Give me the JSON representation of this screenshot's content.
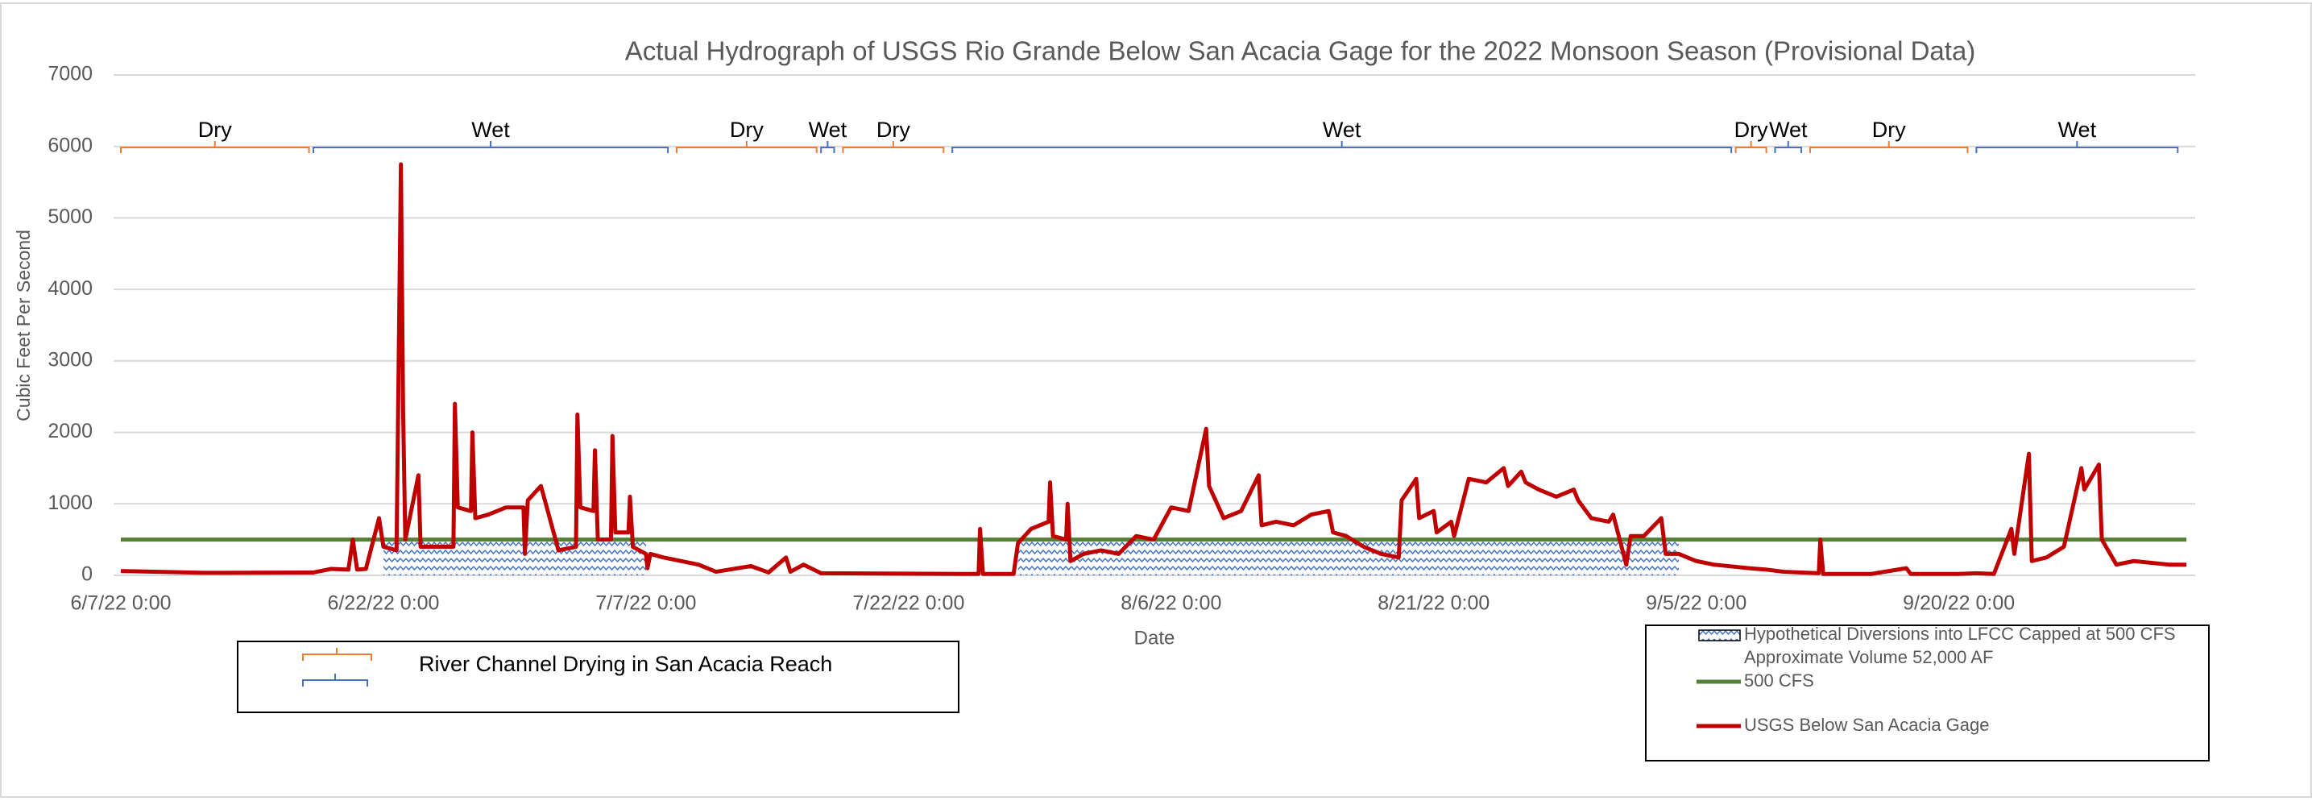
{
  "chart_data": {
    "type": "line",
    "title": "Actual Hydrograph of USGS Rio Grande Below San Acacia Gage for the 2022 Monsoon Season (Provisional Data)",
    "x_label": "Date",
    "y_label": "Cubic Feet Per Second",
    "xlim": [
      "2022-06-07T00:00",
      "2022-10-03T12:00"
    ],
    "xticks": [
      {
        "value": "2022-06-07T00:00",
        "label": "6/7/22 0:00"
      },
      {
        "value": "2022-06-22T00:00",
        "label": "6/22/22 0:00"
      },
      {
        "value": "2022-07-07T00:00",
        "label": "7/7/22 0:00"
      },
      {
        "value": "2022-07-22T00:00",
        "label": "7/22/22 0:00"
      },
      {
        "value": "2022-08-06T00:00",
        "label": "8/6/22 0:00"
      },
      {
        "value": "2022-08-21T00:00",
        "label": "8/21/22 0:00"
      },
      {
        "value": "2022-09-05T00:00",
        "label": "9/5/22 0:00"
      },
      {
        "value": "2022-09-20T00:00",
        "label": "9/20/22 0:00"
      }
    ],
    "ylim": [
      0,
      7000
    ],
    "yticks": [
      0,
      1000,
      2000,
      3000,
      4000,
      5000,
      6000,
      7000
    ],
    "grid": true,
    "series": [
      {
        "name": [
          "Hypothetical Diversions into LFCC Capped at 500 CFS",
          "Approximate Volume 52,000 AF"
        ],
        "type": "area",
        "color": "#4472c4",
        "x": [
          "2022-06-22T00:00",
          "2022-07-07T00:00",
          "2022-07-17T00:00",
          "2022-07-28T06:00",
          "2022-09-04T00:00"
        ],
        "values": [
          500,
          500,
          null,
          500,
          500
        ]
      },
      {
        "name": "500 CFS",
        "type": "line",
        "color": "#548235",
        "x": [
          "2022-06-07T00:00",
          "2022-10-03T00:00"
        ],
        "values": [
          500,
          500
        ]
      },
      {
        "name": "USGS Below San Acacia Gage",
        "type": "line",
        "color": "#c00000",
        "x": [
          "2022-06-07T00:00",
          "2022-06-12T00:00",
          "2022-06-18T00:00",
          "2022-06-19T00:00",
          "2022-06-20T00:00",
          "2022-06-20T06:00",
          "2022-06-20T12:00",
          "2022-06-21T00:00",
          "2022-06-21T18:00",
          "2022-06-22T00:00",
          "2022-06-22T18:00",
          "2022-06-23T00:00",
          "2022-06-23T03:00",
          "2022-06-23T06:00",
          "2022-06-24T00:00",
          "2022-06-24T03:00",
          "2022-06-26T00:00",
          "2022-06-26T02:00",
          "2022-06-26T06:00",
          "2022-06-27T00:00",
          "2022-06-27T02:00",
          "2022-06-27T06:00",
          "2022-06-28T00:00",
          "2022-06-29T00:00",
          "2022-06-30T00:00",
          "2022-06-30T02:00",
          "2022-06-30T06:00",
          "2022-07-01T00:00",
          "2022-07-02T00:00",
          "2022-07-03T00:00",
          "2022-07-03T02:00",
          "2022-07-03T06:00",
          "2022-07-04T00:00",
          "2022-07-04T02:00",
          "2022-07-04T06:00",
          "2022-07-05T00:00",
          "2022-07-05T02:00",
          "2022-07-05T06:00",
          "2022-07-06T00:00",
          "2022-07-06T02:00",
          "2022-07-06T06:00",
          "2022-07-07T00:00",
          "2022-07-07T02:00",
          "2022-07-07T06:00",
          "2022-07-08T00:00",
          "2022-07-10T00:00",
          "2022-07-11T00:00",
          "2022-07-13T00:00",
          "2022-07-14T00:00",
          "2022-07-15T00:00",
          "2022-07-15T06:00",
          "2022-07-16T00:00",
          "2022-07-17T00:00",
          "2022-07-25T00:00",
          "2022-07-26T00:00",
          "2022-07-26T02:00",
          "2022-07-26T06:00",
          "2022-07-28T00:00",
          "2022-07-28T06:00",
          "2022-07-29T00:00",
          "2022-07-30T00:00",
          "2022-07-30T02:00",
          "2022-07-30T06:00",
          "2022-07-31T00:00",
          "2022-07-31T02:00",
          "2022-07-31T06:00",
          "2022-08-01T00:00",
          "2022-08-02T00:00",
          "2022-08-03T00:00",
          "2022-08-04T00:00",
          "2022-08-05T00:00",
          "2022-08-06T00:00",
          "2022-08-07T00:00",
          "2022-08-08T00:00",
          "2022-08-08T04:00",
          "2022-08-09T00:00",
          "2022-08-10T00:00",
          "2022-08-11T00:00",
          "2022-08-11T04:00",
          "2022-08-12T00:00",
          "2022-08-13T00:00",
          "2022-08-14T00:00",
          "2022-08-15T00:00",
          "2022-08-15T06:00",
          "2022-08-16T00:00",
          "2022-08-17T00:00",
          "2022-08-18T00:00",
          "2022-08-19T00:00",
          "2022-08-19T04:00",
          "2022-08-20T00:00",
          "2022-08-20T04:00",
          "2022-08-21T00:00",
          "2022-08-21T04:00",
          "2022-08-22T00:00",
          "2022-08-22T04:00",
          "2022-08-23T00:00",
          "2022-08-24T00:00",
          "2022-08-25T00:00",
          "2022-08-25T06:00",
          "2022-08-26T00:00",
          "2022-08-26T06:00",
          "2022-08-27T00:00",
          "2022-08-28T00:00",
          "2022-08-29T00:00",
          "2022-08-29T06:00",
          "2022-08-30T00:00",
          "2022-08-31T00:00",
          "2022-08-31T06:00",
          "2022-09-01T00:00",
          "2022-09-01T06:00",
          "2022-09-02T00:00",
          "2022-09-03T00:00",
          "2022-09-03T06:00",
          "2022-09-04T00:00",
          "2022-09-05T00:00",
          "2022-09-06T00:00",
          "2022-09-08T00:00",
          "2022-09-09T00:00",
          "2022-09-10T00:00",
          "2022-09-12T00:00",
          "2022-09-12T02:00",
          "2022-09-12T06:00",
          "2022-09-15T00:00",
          "2022-09-17T00:00",
          "2022-09-17T06:00",
          "2022-09-20T00:00",
          "2022-09-21T00:00",
          "2022-09-22T00:00",
          "2022-09-23T00:00",
          "2022-09-23T04:00",
          "2022-09-24T00:00",
          "2022-09-24T04:00",
          "2022-09-25T00:00",
          "2022-09-26T00:00",
          "2022-09-27T00:00",
          "2022-09-27T04:00",
          "2022-09-28T00:00",
          "2022-09-28T04:00",
          "2022-09-29T00:00",
          "2022-09-30T00:00",
          "2022-10-02T00:00",
          "2022-10-03T00:00"
        ],
        "values": [
          60,
          35,
          40,
          90,
          80,
          500,
          80,
          90,
          800,
          400,
          350,
          5750,
          2300,
          500,
          1400,
          400,
          400,
          2400,
          950,
          900,
          2000,
          800,
          850,
          950,
          950,
          300,
          1050,
          1250,
          350,
          400,
          2250,
          950,
          900,
          1750,
          500,
          500,
          1950,
          600,
          600,
          1100,
          400,
          300,
          100,
          300,
          250,
          150,
          50,
          130,
          40,
          250,
          50,
          150,
          30,
          20,
          20,
          650,
          20,
          20,
          450,
          650,
          750,
          1300,
          550,
          500,
          1000,
          200,
          300,
          350,
          300,
          550,
          500,
          950,
          900,
          2050,
          1250,
          800,
          900,
          1400,
          700,
          750,
          700,
          850,
          900,
          600,
          550,
          400,
          300,
          250,
          1050,
          1350,
          800,
          900,
          600,
          750,
          550,
          1350,
          1300,
          1500,
          1250,
          1450,
          1300,
          1200,
          1100,
          1200,
          1050,
          800,
          750,
          850,
          150,
          550,
          550,
          800,
          300,
          300,
          200,
          150,
          100,
          80,
          50,
          30,
          500,
          20,
          20,
          100,
          20,
          20,
          30,
          20,
          650,
          300,
          1700,
          200,
          250,
          400,
          1500,
          1200,
          1550,
          500,
          150,
          200,
          150,
          150
        ]
      }
    ],
    "periods": [
      {
        "label": "Dry",
        "start": "2022-06-07T00:00",
        "end": "2022-06-17T18:00",
        "color": "#ed7d31"
      },
      {
        "label": "Wet",
        "start": "2022-06-18T00:00",
        "end": "2022-07-08T06:00",
        "color": "#4472c4"
      },
      {
        "label": "Dry",
        "start": "2022-07-08T18:00",
        "end": "2022-07-16T18:00",
        "color": "#ed7d31"
      },
      {
        "label": "Wet",
        "start": "2022-07-17T00:00",
        "end": "2022-07-17T18:00",
        "color": "#4472c4"
      },
      {
        "label": "Dry",
        "start": "2022-07-18T06:00",
        "end": "2022-07-24T00:00",
        "color": "#ed7d31"
      },
      {
        "label": "Wet",
        "start": "2022-07-24T12:00",
        "end": "2022-09-07T00:00",
        "color": "#4472c4"
      },
      {
        "label": "Dry",
        "start": "2022-09-07T06:00",
        "end": "2022-09-09T00:00",
        "color": "#ed7d31"
      },
      {
        "label": "Wet",
        "start": "2022-09-09T12:00",
        "end": "2022-09-11T00:00",
        "color": "#4472c4"
      },
      {
        "label": "Dry",
        "start": "2022-09-11T12:00",
        "end": "2022-09-20T12:00",
        "color": "#ed7d31"
      },
      {
        "label": "Wet",
        "start": "2022-09-21T00:00",
        "end": "2022-10-02T12:00",
        "color": "#4472c4"
      }
    ],
    "periods_legend": "River Channel Drying in San Acacia Reach"
  }
}
